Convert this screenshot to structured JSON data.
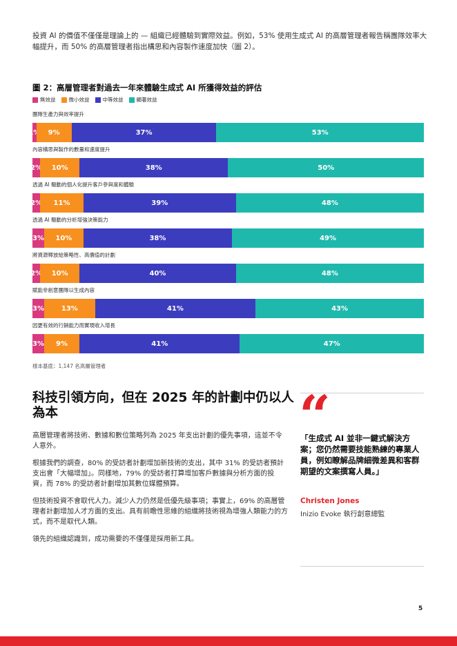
{
  "intro": "投資 AI 的價值不僅僅是理論上的 — 組織已經體驗到實際效益。例如，53% 使用生成式 AI 的高層管理者報告稱團隊效率大幅提升，而 50% 的高層管理者指出構思和內容製作速度加快（圖 2）。",
  "figure": {
    "title": "圖 2：高層管理者對過去一年來體驗生成式 AI 所獲得效益的評估",
    "sample_base": "樣本基底：1,147 名高層管理者"
  },
  "chart_data": {
    "type": "bar",
    "orientation": "horizontal-stacked-100",
    "title": "圖 2：高層管理者對過去一年來體驗生成式 AI 所獲得效益的評估",
    "legend_position": "top-left",
    "series": [
      {
        "name": "無效益",
        "color": "#d93a7e",
        "values": [
          1,
          2,
          2,
          3,
          2,
          3,
          3
        ]
      },
      {
        "name": "微小效益",
        "color": "#f7901e",
        "values": [
          9,
          10,
          11,
          10,
          10,
          13,
          9
        ]
      },
      {
        "name": "中等效益",
        "color": "#3c3cbf",
        "values": [
          37,
          38,
          39,
          38,
          40,
          41,
          41
        ]
      },
      {
        "name": "顯著效益",
        "color": "#1fb8ac",
        "values": [
          53,
          50,
          48,
          49,
          48,
          43,
          47
        ]
      }
    ],
    "categories": [
      "團隊生產力與效率提升",
      "內容構思與製作的數量和速度提升",
      "透過 AI 驅動的個人化提升客戶參與度和體驗",
      "透過 AI 驅動的分析增強決策能力",
      "將資源釋放給策略性、高價值的計劃",
      "賦能非創意團隊以生成內容",
      "因更有效的行銷能力而實現收入增長"
    ]
  },
  "section": {
    "title": "科技引領方向，但在 2025 年的計劃中仍以人為本",
    "paragraphs": [
      "高層管理者將技術、數據和數位策略列為 2025 年支出計劃的優先事項，這並不令人意外。",
      "根據我們的調查，80% 的受訪者計劃增加新技術的支出，其中 31% 的受訪者預計支出會「大幅增加」。同樣地，79% 的受訪者打算增加客戶數據與分析方面的投資，而 78% 的受訪者計劃增加其數位媒體預算。",
      "但技術投資不會取代人力。減少人力仍然是低優先級事項；事實上，69% 的高層管理者計劃增加人才方面的支出。具有前瞻性思維的組織將技術視為增強人類能力的方式，而不是取代人類。",
      "領先的組織認識到，成功需要的不僅僅是採用新工具。"
    ]
  },
  "quote": {
    "mark": "“",
    "text": "「生成式 AI 並非一鍵式解決方案；您仍然需要技能熟練的專業人員，例如瞭解品牌細微差異和客群期望的文案撰寫人員。」",
    "name": "Christen Jones",
    "role": "Inizio Evoke 執行創意總監"
  },
  "page_number": "5"
}
